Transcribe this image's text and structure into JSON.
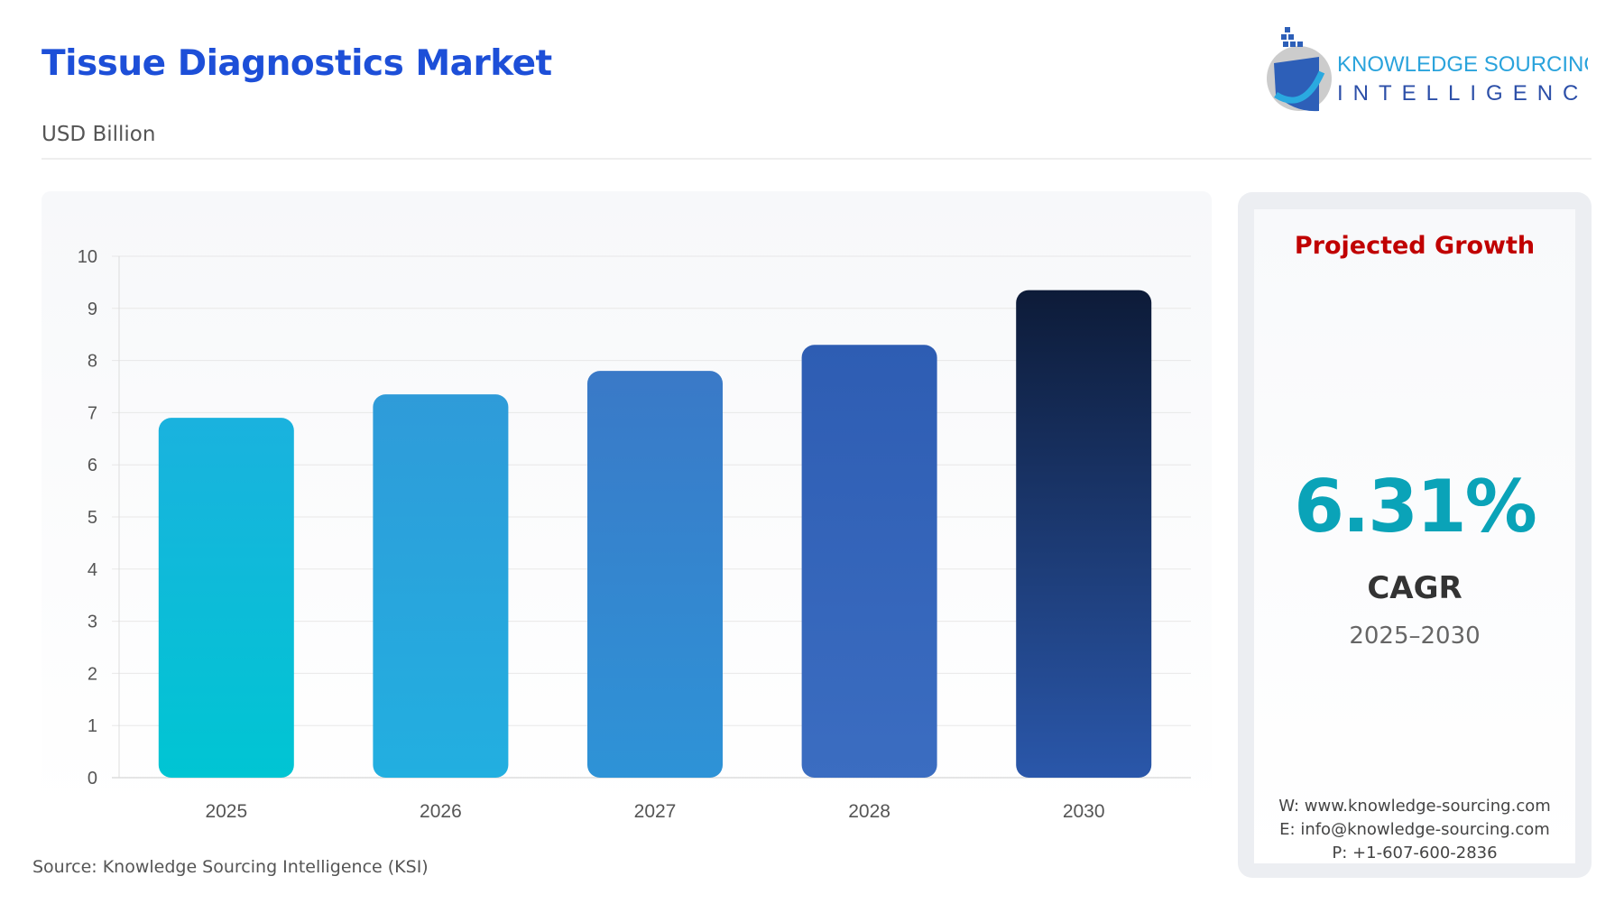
{
  "header": {
    "title": "Tissue Diagnostics Market",
    "subtitle": "USD Billion"
  },
  "logo": {
    "line1": "KNOWLEDGE SOURCING",
    "line2": "INTELLIGENCE"
  },
  "side": {
    "heading": "Projected Growth",
    "cagr_value": "6.31%",
    "cagr_label": "CAGR",
    "period": "2025–2030",
    "website": "W: www.knowledge-sourcing.com",
    "email": "E: info@knowledge-sourcing.com",
    "phone": "P: +1-607-600-2836"
  },
  "source": "Source: Knowledge Sourcing Intelligence (KSI)",
  "chart_data": {
    "type": "bar",
    "categories": [
      "2025",
      "2026",
      "2027",
      "2028",
      "2030"
    ],
    "values": [
      6.9,
      7.35,
      7.8,
      8.3,
      9.35
    ],
    "ylim": [
      0,
      10
    ],
    "yticks": [
      "0",
      "1",
      "2",
      "3",
      "4",
      "5",
      "6",
      "7",
      "8",
      "9",
      "10"
    ],
    "grid": true,
    "colors": [
      [
        "#1ab2de",
        "#00c5d3"
      ],
      [
        "#2f9bd9",
        "#22afe0"
      ],
      [
        "#3a79c7",
        "#2e93d7"
      ],
      [
        "#2e5db3",
        "#3b6dc1"
      ],
      [
        "#0d1b38",
        "#2a57aa"
      ]
    ]
  }
}
